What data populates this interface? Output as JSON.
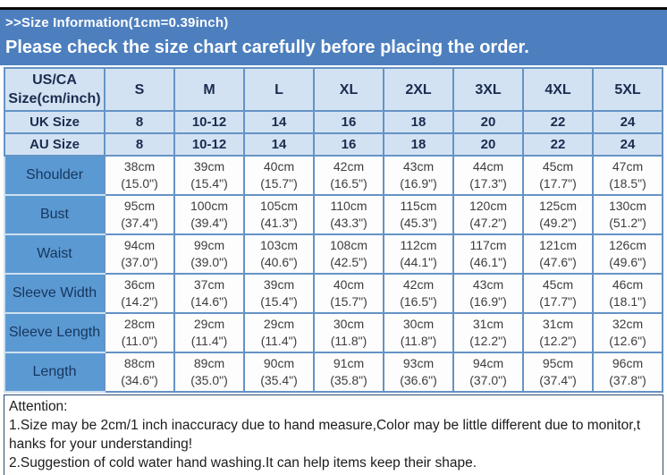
{
  "colors": {
    "banner_bg": "#4d7fbe",
    "header_bg": "#d3e2f3",
    "label_bg": "#5b99d3",
    "grid_border": "#6593c5",
    "outer_border": "#3d6ea8"
  },
  "banner": {
    "line1": ">>Size Information(1cm=0.39inch)",
    "line2": "Please check the size chart carefully before placing the order."
  },
  "table": {
    "corner_line1": "US/CA",
    "corner_line2": "Size(cm/inch)",
    "sizes": [
      "S",
      "M",
      "L",
      "XL",
      "2XL",
      "3XL",
      "4XL",
      "5XL"
    ],
    "uk": {
      "label": "UK Size",
      "values": [
        "8",
        "10-12",
        "14",
        "16",
        "18",
        "20",
        "22",
        "24"
      ]
    },
    "au": {
      "label": "AU Size",
      "values": [
        "8",
        "10-12",
        "14",
        "16",
        "18",
        "20",
        "22",
        "24"
      ]
    },
    "rows": [
      {
        "label": "Shoulder",
        "cm": [
          "38cm",
          "39cm",
          "40cm",
          "42cm",
          "43cm",
          "44cm",
          "45cm",
          "47cm"
        ],
        "inch": [
          "(15.0\")",
          "(15.4\")",
          "(15.7\")",
          "(16.5\")",
          "(16.9\")",
          "(17.3\")",
          "(17.7\")",
          "(18.5\")"
        ]
      },
      {
        "label": "Bust",
        "cm": [
          "95cm",
          "100cm",
          "105cm",
          "110cm",
          "115cm",
          "120cm",
          "125cm",
          "130cm"
        ],
        "inch": [
          "(37.4\")",
          "(39.4\")",
          "(41.3\")",
          "(43.3\")",
          "(45.3\")",
          "(47.2\")",
          "(49.2\")",
          "(51.2\")"
        ]
      },
      {
        "label": "Waist",
        "cm": [
          "94cm",
          "99cm",
          "103cm",
          "108cm",
          "112cm",
          "117cm",
          "121cm",
          "126cm"
        ],
        "inch": [
          "(37.0\")",
          "(39.0\")",
          "(40.6\")",
          "(42.5\")",
          "(44.1\")",
          "(46.1\")",
          "(47.6\")",
          "(49.6\")"
        ]
      },
      {
        "label": "Sleeve Width",
        "cm": [
          "36cm",
          "37cm",
          "39cm",
          "40cm",
          "42cm",
          "43cm",
          "45cm",
          "46cm"
        ],
        "inch": [
          "(14.2\")",
          "(14.6\")",
          "(15.4\")",
          "(15.7\")",
          "(16.5\")",
          "(16.9\")",
          "(17.7\")",
          "(18.1\")"
        ]
      },
      {
        "label": "Sleeve Length",
        "cm": [
          "28cm",
          "29cm",
          "29cm",
          "30cm",
          "30cm",
          "31cm",
          "31cm",
          "32cm"
        ],
        "inch": [
          "(11.0\")",
          "(11.4\")",
          "(11.4\")",
          "(11.8\")",
          "(11.8\")",
          "(12.2\")",
          "(12.2\")",
          "(12.6\")"
        ]
      },
      {
        "label": "Length",
        "cm": [
          "88cm",
          "89cm",
          "90cm",
          "91cm",
          "93cm",
          "94cm",
          "95cm",
          "96cm"
        ],
        "inch": [
          "(34.6\")",
          "(35.0\")",
          "(35.4\")",
          "(35.8\")",
          "(36.6\")",
          "(37.0\")",
          "(37.4\")",
          "(37.8\")"
        ]
      }
    ]
  },
  "attention": {
    "lines": [
      "Attention:",
      "1.Size may be 2cm/1 inch inaccuracy due to hand measure,Color may be little different due to monitor,t",
      "hanks for your understanding!",
      "2.Suggestion of cold water hand washing.It can help items keep their shape."
    ]
  }
}
